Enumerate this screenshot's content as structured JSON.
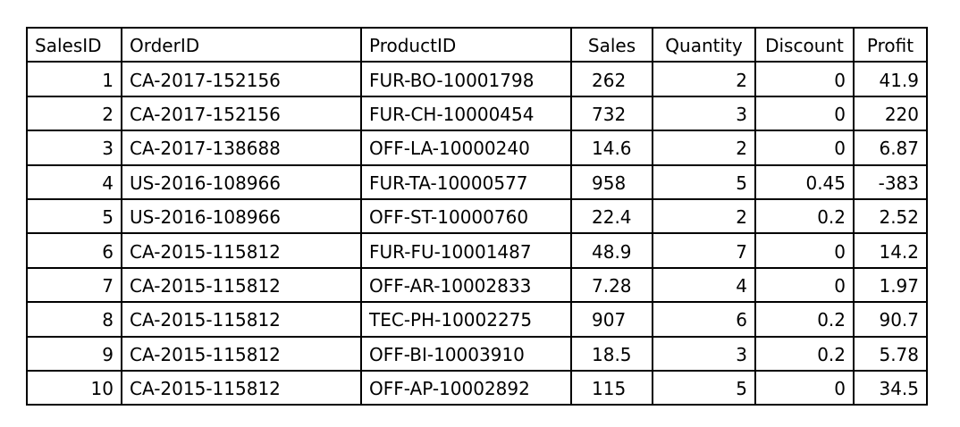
{
  "table": {
    "headers": [
      "SalesID",
      "OrderID",
      "ProductID",
      "Sales",
      "Quantity",
      "Discount",
      "Profit"
    ],
    "rows": [
      [
        "1",
        "CA-2017-152156",
        "FUR-BO-10001798",
        "262",
        "2",
        "0",
        "41.9"
      ],
      [
        "2",
        "CA-2017-152156",
        "FUR-CH-10000454",
        "732",
        "3",
        "0",
        "220"
      ],
      [
        "3",
        "CA-2017-138688",
        "OFF-LA-10000240",
        "14.6",
        "2",
        "0",
        "6.87"
      ],
      [
        "4",
        "US-2016-108966",
        "FUR-TA-10000577",
        "958",
        "5",
        "0.45",
        "-383"
      ],
      [
        "5",
        "US-2016-108966",
        "OFF-ST-10000760",
        "22.4",
        "2",
        "0.2",
        "2.52"
      ],
      [
        "6",
        "CA-2015-115812",
        "FUR-FU-10001487",
        "48.9",
        "7",
        "0",
        "14.2"
      ],
      [
        "7",
        "CA-2015-115812",
        "OFF-AR-10002833",
        "7.28",
        "4",
        "0",
        "1.97"
      ],
      [
        "8",
        "CA-2015-115812",
        "TEC-PH-10002275",
        "907",
        "6",
        "0.2",
        "90.7"
      ],
      [
        "9",
        "CA-2015-115812",
        "OFF-BI-10003910",
        "18.5",
        "3",
        "0.2",
        "5.78"
      ],
      [
        "10",
        "CA-2015-115812",
        "OFF-AP-10002892",
        "115",
        "5",
        "0",
        "34.5"
      ]
    ]
  }
}
